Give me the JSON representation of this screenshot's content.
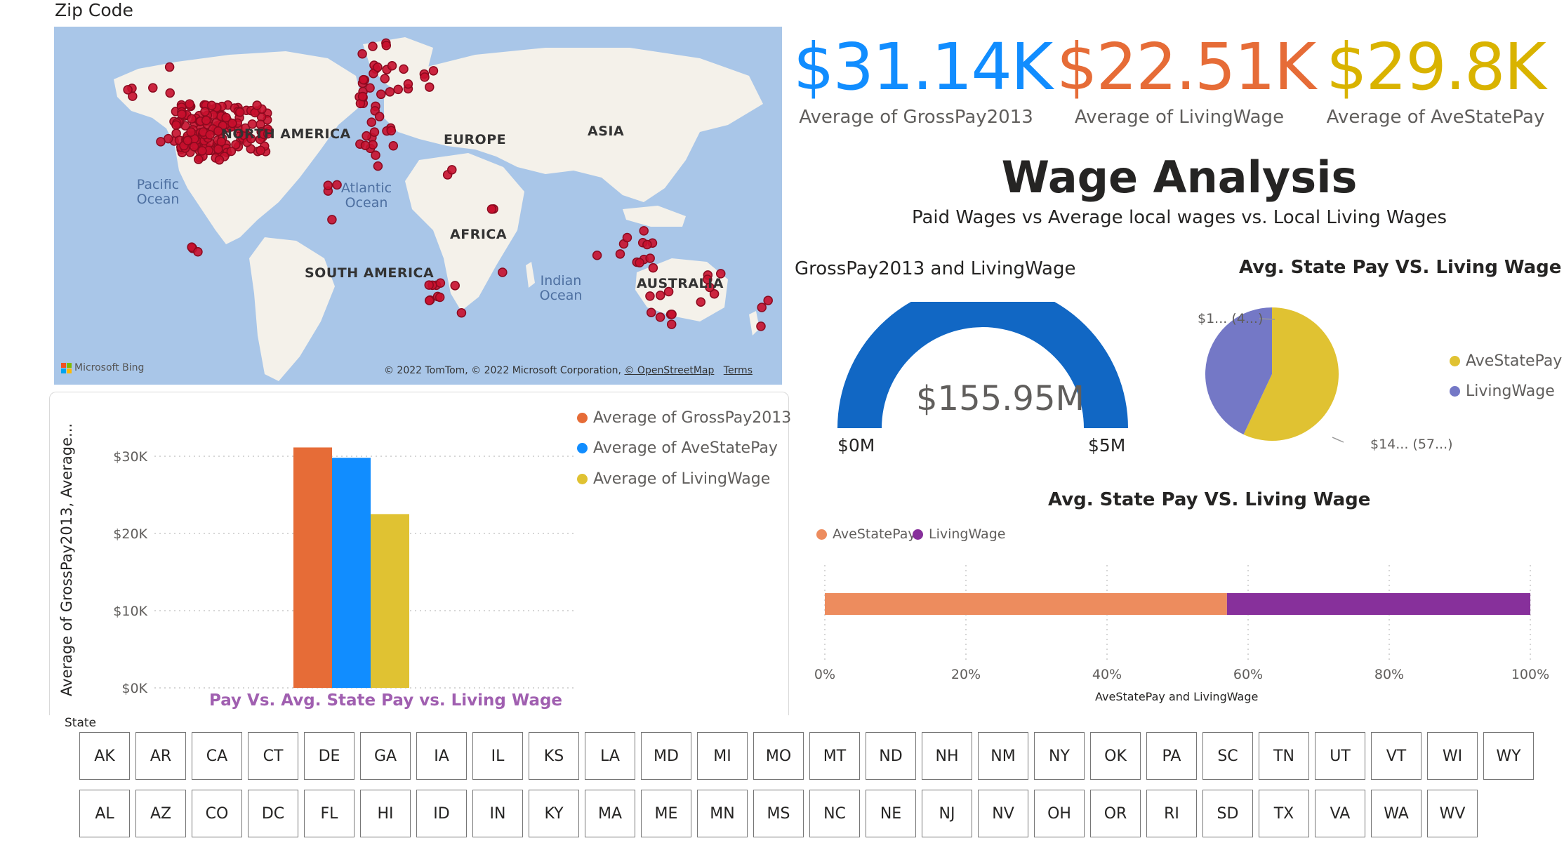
{
  "map": {
    "title": "Zip Code",
    "continents": [
      "NORTH AMERICA",
      "EUROPE",
      "ASIA",
      "AFRICA",
      "SOUTH AMERICA",
      "AUSTRALIA"
    ],
    "oceans": [
      "Pacific Ocean",
      "Atlantic Ocean",
      "Indian Ocean"
    ],
    "bing_label": "Microsoft Bing",
    "copyright": "© 2022 TomTom, © 2022 Microsoft Corporation,",
    "osm_link": "© OpenStreetMap",
    "terms_link": "Terms",
    "marker_color": "#c8102e"
  },
  "kpis": [
    {
      "value": "$31.14K",
      "label": "Average of GrossPay2013",
      "color": "#118dff"
    },
    {
      "value": "$22.51K",
      "label": "Average of LivingWage",
      "color": "#e66c37"
    },
    {
      "value": "$29.8K",
      "label": "Average of AveStatePay",
      "color": "#d9b300"
    }
  ],
  "header": {
    "title": "Wage Analysis",
    "subtitle": "Paid Wages vs Average local wages vs. Local Living Wages"
  },
  "gauge": {
    "title": "GrossPay2013 and LivingWage",
    "value": "$155.95M",
    "min": "$0M",
    "max": "$5M",
    "color": "#1167c4"
  },
  "pie": {
    "title": "Avg. State Pay VS. Living Wage",
    "label_top": "$1... (4...)",
    "label_bottom": "$14... (57...)",
    "legend": [
      "AveStatePay",
      "LivingWage"
    ],
    "colors": [
      "#e0c232",
      "#7478c6"
    ]
  },
  "column_chart": {
    "title": "Pay Vs. Avg. State Pay vs. Living Wage",
    "ylabel": "Average of GrossPay2013, Average...",
    "legend": [
      "Average of GrossPay2013",
      "Average of AveStatePay",
      "Average of LivingWage"
    ],
    "colors": [
      "#e66c37",
      "#118dff",
      "#e0c232"
    ],
    "title_color": "#a05fb0"
  },
  "stacked_bar": {
    "title": "Avg. State Pay VS. Living Wage",
    "legend": [
      "AveStatePay",
      "LivingWage"
    ],
    "colors": [
      "#ed8c5e",
      "#87309b"
    ],
    "xlabel": "AveStatePay and LivingWage"
  },
  "slicer": {
    "title": "State",
    "row1": [
      "AK",
      "AR",
      "CA",
      "CT",
      "DE",
      "GA",
      "IA",
      "IL",
      "KS",
      "LA",
      "MD",
      "MI",
      "MO",
      "MT",
      "ND",
      "NH",
      "NM",
      "NY",
      "OK",
      "PA",
      "SC",
      "TN",
      "UT",
      "VT",
      "WI",
      "WY"
    ],
    "row2": [
      "AL",
      "AZ",
      "CO",
      "DC",
      "FL",
      "HI",
      "ID",
      "IN",
      "KY",
      "MA",
      "ME",
      "MN",
      "MS",
      "NC",
      "NE",
      "NJ",
      "NV",
      "OH",
      "OR",
      "RI",
      "SD",
      "TX",
      "VA",
      "WA",
      "WV"
    ]
  },
  "chart_data": [
    {
      "type": "bar",
      "title": "Pay Vs. Avg. State Pay vs. Living Wage",
      "ylabel": "Average of GrossPay2013, Average...",
      "categories": [
        ""
      ],
      "series": [
        {
          "name": "Average of GrossPay2013",
          "values": [
            31140
          ]
        },
        {
          "name": "Average of AveStatePay",
          "values": [
            29800
          ]
        },
        {
          "name": "Average of LivingWage",
          "values": [
            22510
          ]
        }
      ],
      "yticks": [
        "$0K",
        "$10K",
        "$20K",
        "$30K"
      ],
      "ylim": [
        0,
        31140
      ],
      "grid": true,
      "legend": "top-right"
    },
    {
      "type": "bar",
      "orientation": "horizontal-100-stacked",
      "title": "Avg. State Pay VS. Living Wage",
      "xlabel": "AveStatePay and LivingWage",
      "series": [
        {
          "name": "AveStatePay",
          "values": [
            57
          ]
        },
        {
          "name": "LivingWage",
          "values": [
            43
          ]
        }
      ],
      "xticks": [
        "0%",
        "20%",
        "40%",
        "60%",
        "80%",
        "100%"
      ],
      "xlim": [
        0,
        100
      ],
      "legend": "top-left"
    },
    {
      "type": "pie",
      "title": "Avg. State Pay VS. Living Wage",
      "labels": [
        "AveStatePay",
        "LivingWage"
      ],
      "values": [
        57,
        43
      ],
      "data_labels": [
        "$14... (57...)",
        "$1... (4...)"
      ]
    }
  ]
}
